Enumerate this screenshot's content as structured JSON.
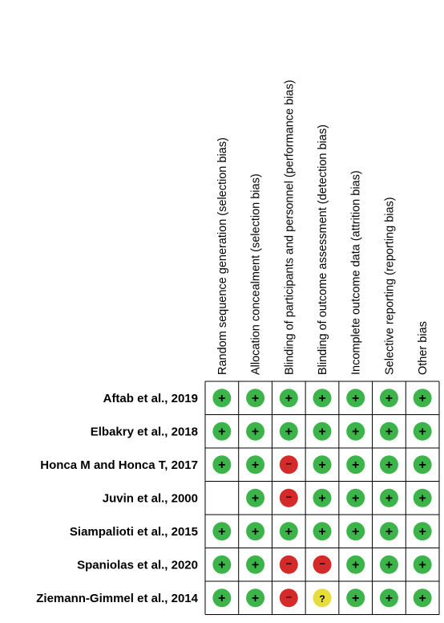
{
  "chart_data": {
    "type": "table",
    "title": "",
    "columns": [
      "Random sequence generation (selection bias)",
      "Allocation concealment (selection bias)",
      "Blinding of participants and personnel (performance bias)",
      "Blinding of outcome assessment (detection bias)",
      "Incomplete outcome data (attrition bias)",
      "Selective reporting (reporting bias)",
      "Other bias"
    ],
    "rows": [
      {
        "study": "Aftab et al., 2019",
        "judgements": [
          "+",
          "+",
          "+",
          "+",
          "+",
          "+",
          "+"
        ]
      },
      {
        "study": "Elbakry et al., 2018",
        "judgements": [
          "+",
          "+",
          "+",
          "+",
          "+",
          "+",
          "+"
        ]
      },
      {
        "study": "Honca M and Honca T, 2017",
        "judgements": [
          "+",
          "+",
          "-",
          "+",
          "+",
          "+",
          "+"
        ]
      },
      {
        "study": "Juvin et al., 2000",
        "judgements": [
          "",
          "+",
          "-",
          "+",
          "+",
          "+",
          "+"
        ]
      },
      {
        "study": "Siampalioti et al., 2015",
        "judgements": [
          "+",
          "+",
          "+",
          "+",
          "+",
          "+",
          "+"
        ]
      },
      {
        "study": "Spaniolas et al., 2020",
        "judgements": [
          "+",
          "+",
          "-",
          "-",
          "+",
          "+",
          "+"
        ]
      },
      {
        "study": "Ziemann-Gimmel et al., 2014",
        "judgements": [
          "+",
          "+",
          "-",
          "?",
          "+",
          "+",
          "+"
        ]
      }
    ],
    "symbols": {
      "+": {
        "label": "+",
        "color": "#3cb44a"
      },
      "-": {
        "label": "−",
        "color": "#d42a2a"
      },
      "?": {
        "label": "?",
        "color": "#e6dc3c"
      }
    },
    "grid_color": "#000000"
  }
}
